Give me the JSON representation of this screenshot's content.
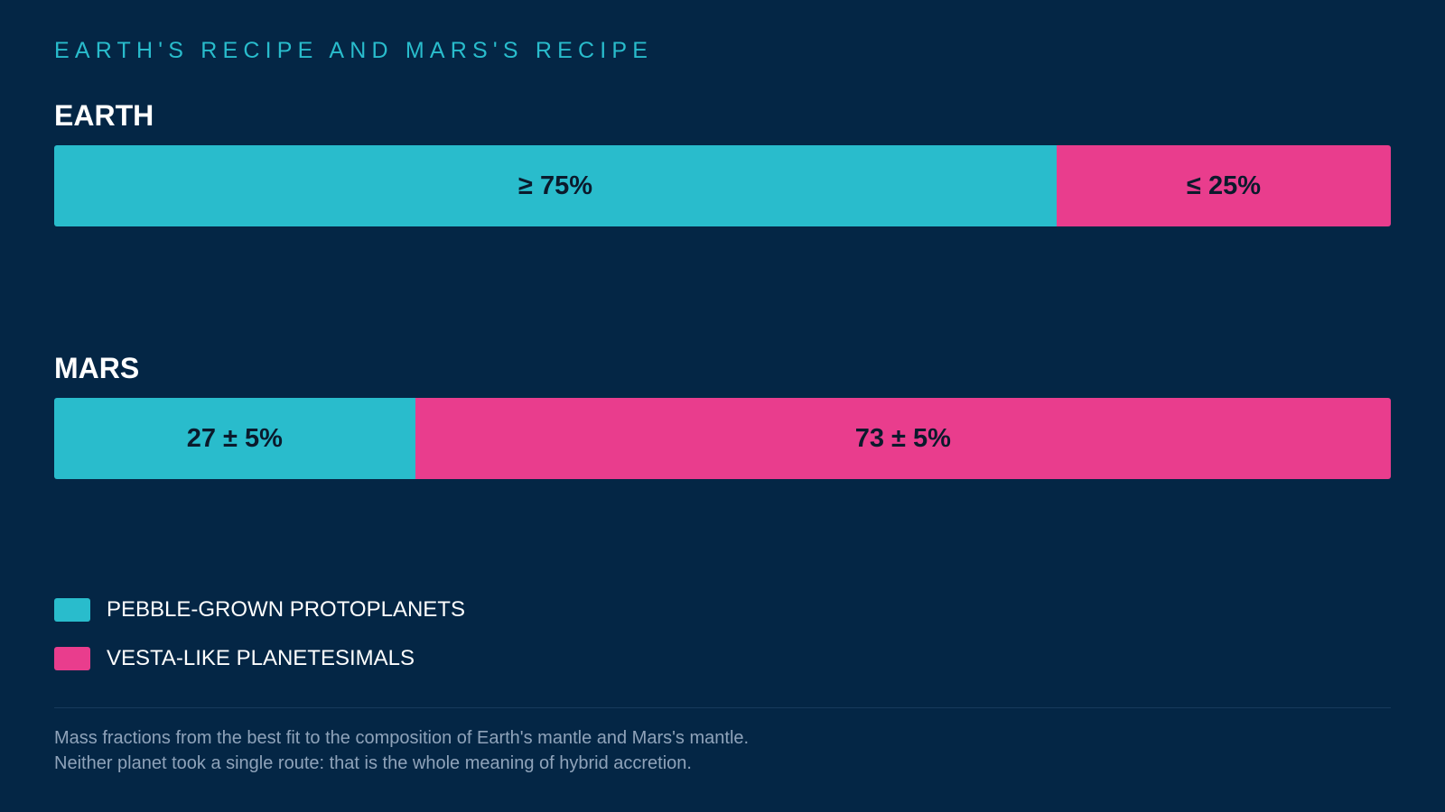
{
  "eyebrow": "EARTH'S RECIPE AND MARS'S RECIPE",
  "colors": {
    "background": "#042645",
    "pebble": "#29bccc",
    "vesta": "#e93d8d"
  },
  "legend": [
    {
      "label": "PEBBLE-GROWN PROTOPLANETS",
      "color": "#29bccc"
    },
    {
      "label": "VESTA-LIKE PLANETESIMALS",
      "color": "#e93d8d"
    }
  ],
  "footnote": {
    "line1": "Mass fractions from the best fit to the composition of Earth's mantle and Mars's mantle.",
    "line2": "Neither planet took a single route: that is the whole meaning of hybrid accretion."
  },
  "chart_data": {
    "type": "bar",
    "orientation": "horizontal",
    "stacked": true,
    "title": "EARTH'S RECIPE AND MARS'S RECIPE",
    "categories": [
      "EARTH",
      "MARS"
    ],
    "series": [
      {
        "name": "PEBBLE-GROWN PROTOPLANETS",
        "values": [
          75,
          27
        ],
        "labels": [
          "≥ 75%",
          "27 ± 5%"
        ]
      },
      {
        "name": "VESTA-LIKE PLANETESIMALS",
        "values": [
          25,
          73
        ],
        "labels": [
          "≤ 25%",
          "73 ± 5%"
        ]
      }
    ],
    "unit": "%",
    "xlim": [
      0,
      100
    ],
    "grid": false,
    "legend_position": "bottom-left"
  }
}
